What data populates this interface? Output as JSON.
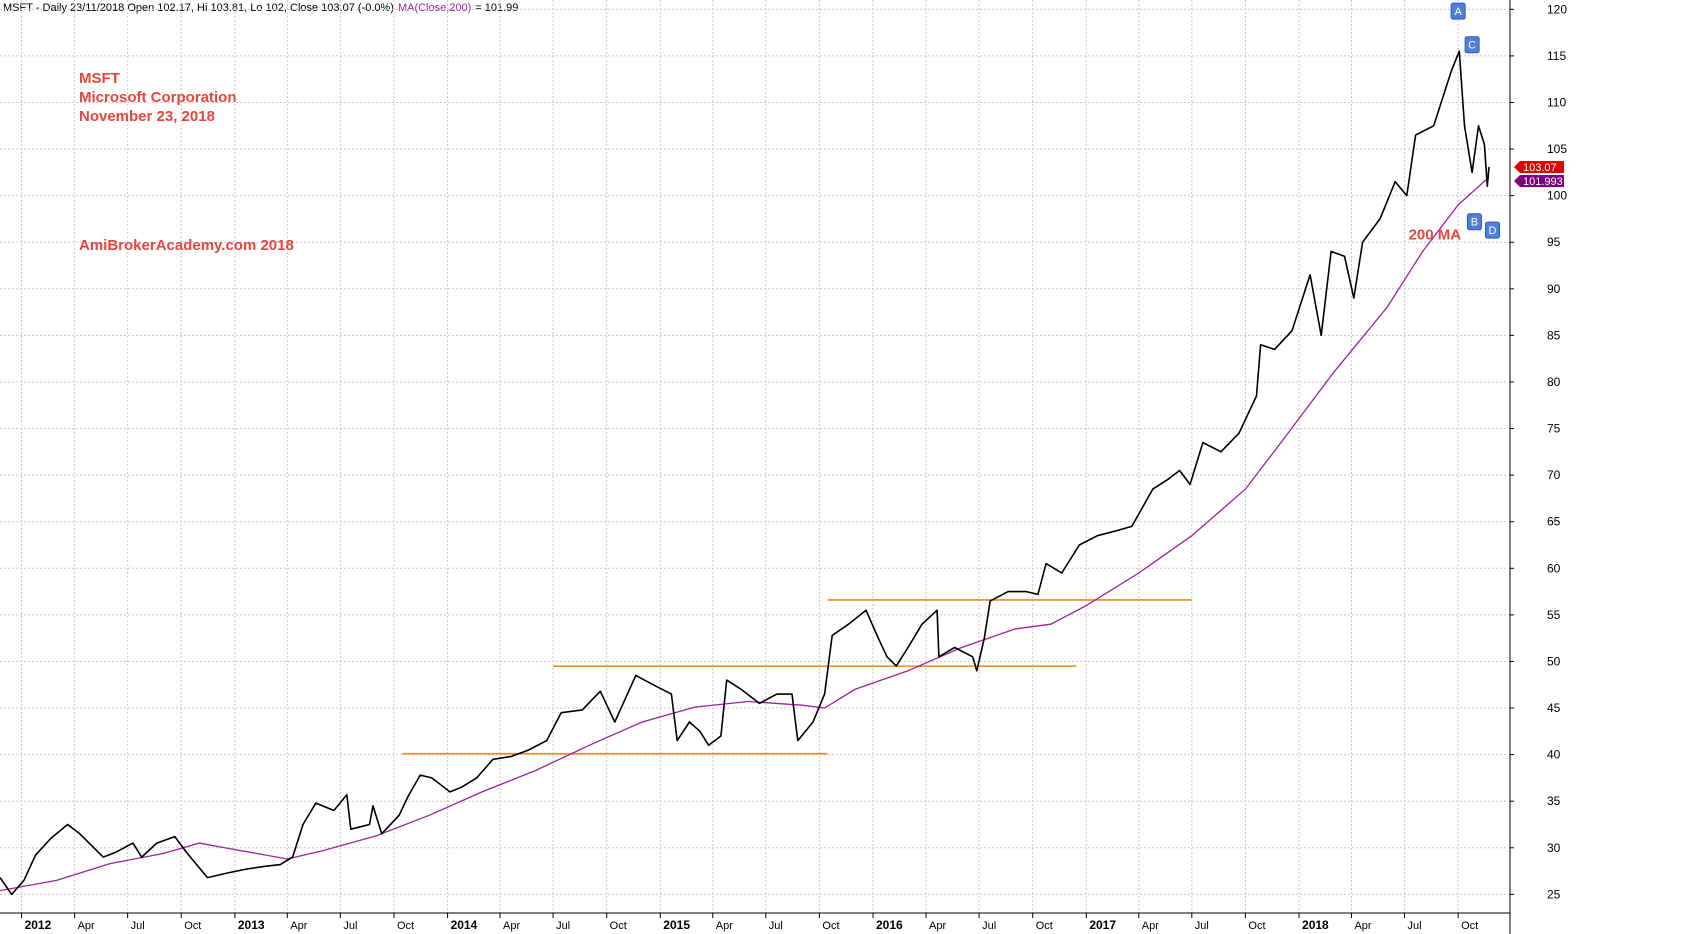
{
  "header": {
    "main_text": "MSFT - Daily 23/11/2018 Open 102.17, Hi 103.81, Lo 102, Close 103.07 (-0.0%)",
    "ma_label": "MA(Close,200)",
    "ma_value_text": "= 101.99"
  },
  "notes": {
    "symbol": "MSFT",
    "company": "Microsoft Corporation",
    "date": "November 23, 2018",
    "watermark": "AmiBrokerAcademy.com  2018",
    "ma_annotation": "200 MA"
  },
  "chart_data": {
    "type": "line",
    "ylim": [
      23,
      121
    ],
    "yticks": [
      25,
      30,
      35,
      40,
      45,
      50,
      55,
      60,
      65,
      70,
      75,
      80,
      85,
      90,
      95,
      100,
      105,
      110,
      115,
      120
    ],
    "xlim": [
      "2011-11-25",
      "2018-12-29"
    ],
    "xticks": [
      {
        "date": "2012-01-01",
        "label": "2012",
        "year": true
      },
      {
        "date": "2012-04-01",
        "label": "Apr"
      },
      {
        "date": "2012-07-01",
        "label": "Jul"
      },
      {
        "date": "2012-10-01",
        "label": "Oct"
      },
      {
        "date": "2013-01-01",
        "label": "2013",
        "year": true
      },
      {
        "date": "2013-04-01",
        "label": "Apr"
      },
      {
        "date": "2013-07-01",
        "label": "Jul"
      },
      {
        "date": "2013-10-01",
        "label": "Oct"
      },
      {
        "date": "2014-01-01",
        "label": "2014",
        "year": true
      },
      {
        "date": "2014-04-01",
        "label": "Apr"
      },
      {
        "date": "2014-07-01",
        "label": "Jul"
      },
      {
        "date": "2014-10-01",
        "label": "Oct"
      },
      {
        "date": "2015-01-01",
        "label": "2015",
        "year": true
      },
      {
        "date": "2015-04-01",
        "label": "Apr"
      },
      {
        "date": "2015-07-01",
        "label": "Jul"
      },
      {
        "date": "2015-10-01",
        "label": "Oct"
      },
      {
        "date": "2016-01-01",
        "label": "2016",
        "year": true
      },
      {
        "date": "2016-04-01",
        "label": "Apr"
      },
      {
        "date": "2016-07-01",
        "label": "Jul"
      },
      {
        "date": "2016-10-01",
        "label": "Oct"
      },
      {
        "date": "2017-01-01",
        "label": "2017",
        "year": true
      },
      {
        "date": "2017-04-01",
        "label": "Apr"
      },
      {
        "date": "2017-07-01",
        "label": "Jul"
      },
      {
        "date": "2017-10-01",
        "label": "Oct"
      },
      {
        "date": "2018-01-01",
        "label": "2018",
        "year": true
      },
      {
        "date": "2018-04-01",
        "label": "Apr"
      },
      {
        "date": "2018-07-01",
        "label": "Jul"
      },
      {
        "date": "2018-10-01",
        "label": "Oct"
      }
    ],
    "series": [
      {
        "name": "MSFT",
        "points": [
          [
            "2011-11-25",
            26.8
          ],
          [
            "2011-12-15",
            25.0
          ],
          [
            "2012-01-05",
            26.5
          ],
          [
            "2012-01-25",
            29.2
          ],
          [
            "2012-02-20",
            31.0
          ],
          [
            "2012-03-20",
            32.5
          ],
          [
            "2012-04-10",
            31.5
          ],
          [
            "2012-05-20",
            29.0
          ],
          [
            "2012-06-10",
            29.5
          ],
          [
            "2012-07-10",
            30.5
          ],
          [
            "2012-07-25",
            29.0
          ],
          [
            "2012-08-20",
            30.5
          ],
          [
            "2012-09-20",
            31.2
          ],
          [
            "2012-10-10",
            29.5
          ],
          [
            "2012-11-15",
            26.8
          ],
          [
            "2012-12-20",
            27.3
          ],
          [
            "2013-01-20",
            27.7
          ],
          [
            "2013-02-20",
            28.0
          ],
          [
            "2013-03-20",
            28.2
          ],
          [
            "2013-04-10",
            29.0
          ],
          [
            "2013-04-28",
            32.5
          ],
          [
            "2013-05-20",
            34.8
          ],
          [
            "2013-06-20",
            34.0
          ],
          [
            "2013-07-12",
            35.7
          ],
          [
            "2013-07-19",
            32.0
          ],
          [
            "2013-08-20",
            32.5
          ],
          [
            "2013-08-26",
            34.5
          ],
          [
            "2013-09-10",
            31.5
          ],
          [
            "2013-10-10",
            33.5
          ],
          [
            "2013-10-25",
            35.5
          ],
          [
            "2013-11-15",
            37.8
          ],
          [
            "2013-12-05",
            37.5
          ],
          [
            "2014-01-05",
            36.0
          ],
          [
            "2014-01-25",
            36.5
          ],
          [
            "2014-02-20",
            37.5
          ],
          [
            "2014-03-20",
            39.5
          ],
          [
            "2014-04-20",
            39.8
          ],
          [
            "2014-05-20",
            40.5
          ],
          [
            "2014-06-20",
            41.5
          ],
          [
            "2014-07-15",
            44.5
          ],
          [
            "2014-08-20",
            44.8
          ],
          [
            "2014-09-20",
            46.8
          ],
          [
            "2014-10-15",
            43.5
          ],
          [
            "2014-11-20",
            48.5
          ],
          [
            "2014-12-20",
            47.5
          ],
          [
            "2015-01-20",
            46.5
          ],
          [
            "2015-01-30",
            41.5
          ],
          [
            "2015-02-20",
            43.5
          ],
          [
            "2015-03-10",
            42.5
          ],
          [
            "2015-03-25",
            41.0
          ],
          [
            "2015-04-15",
            42.0
          ],
          [
            "2015-04-25",
            48.0
          ],
          [
            "2015-05-20",
            47.0
          ],
          [
            "2015-06-20",
            45.5
          ],
          [
            "2015-07-20",
            46.5
          ],
          [
            "2015-08-15",
            46.5
          ],
          [
            "2015-08-25",
            41.5
          ],
          [
            "2015-09-20",
            43.5
          ],
          [
            "2015-10-10",
            46.5
          ],
          [
            "2015-10-23",
            52.8
          ],
          [
            "2015-11-20",
            54.0
          ],
          [
            "2015-12-20",
            55.5
          ],
          [
            "2016-01-10",
            52.5
          ],
          [
            "2016-01-25",
            50.5
          ],
          [
            "2016-02-10",
            49.5
          ],
          [
            "2016-03-01",
            51.5
          ],
          [
            "2016-03-25",
            54.0
          ],
          [
            "2016-04-20",
            55.5
          ],
          [
            "2016-04-23",
            50.5
          ],
          [
            "2016-05-20",
            51.5
          ],
          [
            "2016-06-20",
            50.5
          ],
          [
            "2016-06-27",
            49.0
          ],
          [
            "2016-07-10",
            52.5
          ],
          [
            "2016-07-20",
            56.5
          ],
          [
            "2016-08-20",
            57.5
          ],
          [
            "2016-09-20",
            57.5
          ],
          [
            "2016-10-10",
            57.2
          ],
          [
            "2016-10-24",
            60.5
          ],
          [
            "2016-11-20",
            59.5
          ],
          [
            "2016-12-20",
            62.5
          ],
          [
            "2017-01-20",
            63.5
          ],
          [
            "2017-02-20",
            64.0
          ],
          [
            "2017-03-20",
            64.5
          ],
          [
            "2017-04-25",
            68.5
          ],
          [
            "2017-05-20",
            69.5
          ],
          [
            "2017-06-10",
            70.5
          ],
          [
            "2017-06-28",
            69.0
          ],
          [
            "2017-07-20",
            73.5
          ],
          [
            "2017-08-20",
            72.5
          ],
          [
            "2017-09-20",
            74.5
          ],
          [
            "2017-10-20",
            78.5
          ],
          [
            "2017-10-27",
            84.0
          ],
          [
            "2017-11-20",
            83.5
          ],
          [
            "2017-12-20",
            85.5
          ],
          [
            "2018-01-20",
            91.5
          ],
          [
            "2018-02-08",
            85.0
          ],
          [
            "2018-02-25",
            94.0
          ],
          [
            "2018-03-20",
            93.5
          ],
          [
            "2018-04-05",
            89.0
          ],
          [
            "2018-04-20",
            95.0
          ],
          [
            "2018-05-20",
            97.5
          ],
          [
            "2018-06-15",
            101.5
          ],
          [
            "2018-07-05",
            100.0
          ],
          [
            "2018-07-20",
            106.5
          ],
          [
            "2018-08-20",
            107.5
          ],
          [
            "2018-09-20",
            113.5
          ],
          [
            "2018-10-03",
            115.5
          ],
          [
            "2018-10-12",
            107.5
          ],
          [
            "2018-10-25",
            102.5
          ],
          [
            "2018-11-05",
            107.5
          ],
          [
            "2018-11-15",
            105.5
          ],
          [
            "2018-11-20",
            101.0
          ],
          [
            "2018-11-23",
            103.07
          ]
        ]
      },
      {
        "name": "MA(Close,200)",
        "points": [
          [
            "2011-11-25",
            25.4
          ],
          [
            "2012-03-01",
            26.5
          ],
          [
            "2012-06-01",
            28.3
          ],
          [
            "2012-09-01",
            29.4
          ],
          [
            "2012-11-01",
            30.5
          ],
          [
            "2013-01-01",
            29.8
          ],
          [
            "2013-04-01",
            28.8
          ],
          [
            "2013-06-01",
            29.7
          ],
          [
            "2013-09-01",
            31.3
          ],
          [
            "2013-12-01",
            33.5
          ],
          [
            "2014-03-01",
            36.0
          ],
          [
            "2014-06-01",
            38.3
          ],
          [
            "2014-09-01",
            41.0
          ],
          [
            "2014-12-01",
            43.5
          ],
          [
            "2015-03-01",
            45.1
          ],
          [
            "2015-06-01",
            45.7
          ],
          [
            "2015-09-01",
            45.3
          ],
          [
            "2015-10-10",
            45.0
          ],
          [
            "2015-12-01",
            47.0
          ],
          [
            "2016-03-01",
            49.0
          ],
          [
            "2016-06-01",
            51.5
          ],
          [
            "2016-09-01",
            53.5
          ],
          [
            "2016-11-01",
            54.0
          ],
          [
            "2017-01-01",
            56.0
          ],
          [
            "2017-04-01",
            59.5
          ],
          [
            "2017-07-01",
            63.5
          ],
          [
            "2017-10-01",
            68.5
          ],
          [
            "2017-12-01",
            73.5
          ],
          [
            "2018-03-01",
            81.0
          ],
          [
            "2018-06-01",
            88.0
          ],
          [
            "2018-08-01",
            94.0
          ],
          [
            "2018-10-01",
            99.0
          ],
          [
            "2018-11-23",
            101.99
          ]
        ]
      }
    ],
    "horizontal_lines": [
      {
        "y": 40.1,
        "from": "2013-10-15",
        "to": "2015-10-15"
      },
      {
        "y": 49.5,
        "from": "2014-07-01",
        "to": "2016-12-15"
      },
      {
        "y": 56.6,
        "from": "2015-10-15",
        "to": "2017-07-01"
      }
    ],
    "price_labels": [
      {
        "text": "103.07",
        "value": 103.07,
        "color": "#e00000"
      },
      {
        "text": "101.993",
        "value": 101.993,
        "color": "#800080"
      }
    ],
    "wave_markers": [
      {
        "label": "A",
        "date": "2018-10-01",
        "value": 119.8
      },
      {
        "label": "C",
        "date": "2018-10-25",
        "value": 116.2
      },
      {
        "label": "B",
        "date": "2018-10-29",
        "value": 97.2
      },
      {
        "label": "D",
        "date": "2018-11-29",
        "value": 96.3
      }
    ],
    "annotation_anchor": {
      "date": "2018-07-08",
      "value": 95.3
    },
    "colors": {
      "price": "#000000",
      "ma": "#a020a0",
      "horizontal_line": "#f08a10",
      "notes": "#e8453c",
      "marker": "#4f7fd8"
    }
  }
}
